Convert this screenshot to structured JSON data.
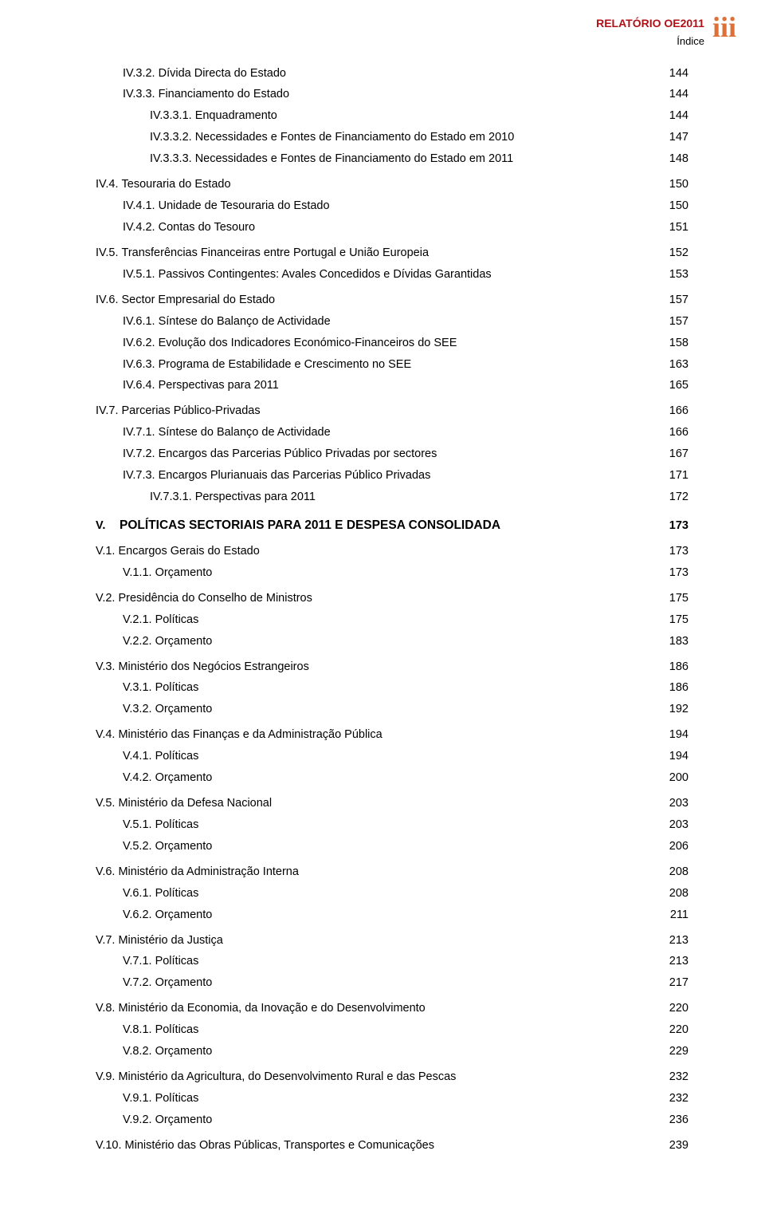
{
  "header": {
    "title": "RELATÓRIO OE2011",
    "subtitle": "Índice",
    "page_mark": "iii",
    "title_color": "#b01018",
    "mark_color": "#de6f36"
  },
  "toc": [
    {
      "level": 3,
      "num": "IV.3.2.",
      "title": "Dívida Directa do Estado",
      "page": "144"
    },
    {
      "level": 3,
      "num": "IV.3.3.",
      "title": "Financiamento do Estado",
      "page": "144"
    },
    {
      "level": 4,
      "num": "IV.3.3.1.",
      "title": "Enquadramento",
      "page": "144"
    },
    {
      "level": 4,
      "num": "IV.3.3.2.",
      "title": "Necessidades e Fontes de Financiamento do Estado em 2010",
      "page": "147"
    },
    {
      "level": 4,
      "num": "IV.3.3.3.",
      "title": "Necessidades e Fontes de Financiamento do Estado em 2011",
      "page": "148"
    },
    {
      "level": 2,
      "num": "IV.4.",
      "title": "Tesouraria do Estado",
      "page": "150"
    },
    {
      "level": 3,
      "num": "IV.4.1.",
      "title": "Unidade de Tesouraria do Estado",
      "page": "150"
    },
    {
      "level": 3,
      "num": "IV.4.2.",
      "title": "Contas do Tesouro",
      "page": "151"
    },
    {
      "level": 2,
      "num": "IV.5.",
      "title": "Transferências Financeiras entre Portugal e União Europeia",
      "page": "152"
    },
    {
      "level": 3,
      "num": "IV.5.1.",
      "title": "Passivos Contingentes: Avales Concedidos e Dívidas Garantidas",
      "page": "153"
    },
    {
      "level": 2,
      "num": "IV.6.",
      "title": "Sector Empresarial do Estado",
      "page": "157"
    },
    {
      "level": 3,
      "num": "IV.6.1.",
      "title": "Síntese do Balanço de Actividade",
      "page": "157"
    },
    {
      "level": 3,
      "num": "IV.6.2.",
      "title": "Evolução dos Indicadores Económico-Financeiros do SEE",
      "page": "158"
    },
    {
      "level": 3,
      "num": "IV.6.3.",
      "title": "Programa de Estabilidade e Crescimento no SEE",
      "page": "163"
    },
    {
      "level": 3,
      "num": "IV.6.4.",
      "title": "Perspectivas para 2011",
      "page": "165"
    },
    {
      "level": 2,
      "num": "IV.7.",
      "title": "Parcerias Público-Privadas",
      "page": "166"
    },
    {
      "level": 3,
      "num": "IV.7.1.",
      "title": "Síntese do Balanço de Actividade",
      "page": "166"
    },
    {
      "level": 3,
      "num": "IV.7.2.",
      "title": "Encargos das Parcerias Público Privadas por sectores",
      "page": "167"
    },
    {
      "level": 3,
      "num": "IV.7.3.",
      "title": "Encargos Plurianuais das Parcerias Público Privadas",
      "page": "171"
    },
    {
      "level": 4,
      "num": "IV.7.3.1.",
      "title": "Perspectivas para 2011",
      "page": "172"
    },
    {
      "level": 1,
      "num": "V.",
      "title": "POLÍTICAS SECTORIAIS PARA 2011 E DESPESA CONSOLIDADA",
      "page": "173",
      "chapter": true
    },
    {
      "level": 2,
      "num": "V.1.",
      "title": "Encargos Gerais do Estado",
      "page": "173"
    },
    {
      "level": 3,
      "num": "V.1.1.",
      "title": "Orçamento",
      "page": "173"
    },
    {
      "level": 2,
      "num": "V.2.",
      "title": "Presidência do Conselho de Ministros",
      "page": "175"
    },
    {
      "level": 3,
      "num": "V.2.1.",
      "title": "Políticas",
      "page": "175"
    },
    {
      "level": 3,
      "num": "V.2.2.",
      "title": "Orçamento",
      "page": "183"
    },
    {
      "level": 2,
      "num": "V.3.",
      "title": "Ministério dos Negócios Estrangeiros",
      "page": "186"
    },
    {
      "level": 3,
      "num": "V.3.1.",
      "title": "Políticas",
      "page": "186"
    },
    {
      "level": 3,
      "num": "V.3.2.",
      "title": "Orçamento",
      "page": "192"
    },
    {
      "level": 2,
      "num": "V.4.",
      "title": "Ministério das Finanças e da Administração Pública",
      "page": "194"
    },
    {
      "level": 3,
      "num": "V.4.1.",
      "title": "Políticas",
      "page": "194"
    },
    {
      "level": 3,
      "num": "V.4.2.",
      "title": "Orçamento",
      "page": "200"
    },
    {
      "level": 2,
      "num": "V.5.",
      "title": "Ministério da Defesa Nacional",
      "page": "203"
    },
    {
      "level": 3,
      "num": "V.5.1.",
      "title": "Políticas",
      "page": "203"
    },
    {
      "level": 3,
      "num": "V.5.2.",
      "title": "Orçamento",
      "page": "206"
    },
    {
      "level": 2,
      "num": "V.6.",
      "title": "Ministério da Administração Interna",
      "page": "208"
    },
    {
      "level": 3,
      "num": "V.6.1.",
      "title": "Políticas",
      "page": "208"
    },
    {
      "level": 3,
      "num": "V.6.2.",
      "title": "Orçamento",
      "page": "211"
    },
    {
      "level": 2,
      "num": "V.7.",
      "title": "Ministério da Justiça",
      "page": "213"
    },
    {
      "level": 3,
      "num": "V.7.1.",
      "title": "Políticas",
      "page": "213"
    },
    {
      "level": 3,
      "num": "V.7.2.",
      "title": "Orçamento",
      "page": "217"
    },
    {
      "level": 2,
      "num": "V.8.",
      "title": "Ministério da Economia, da Inovação e do Desenvolvimento",
      "page": "220"
    },
    {
      "level": 3,
      "num": "V.8.1.",
      "title": "Políticas",
      "page": "220"
    },
    {
      "level": 3,
      "num": "V.8.2.",
      "title": "Orçamento",
      "page": "229"
    },
    {
      "level": 2,
      "num": "V.9.",
      "title": "Ministério da Agricultura, do Desenvolvimento Rural e das Pescas",
      "page": "232"
    },
    {
      "level": 3,
      "num": "V.9.1.",
      "title": "Políticas",
      "page": "232"
    },
    {
      "level": 3,
      "num": "V.9.2.",
      "title": "Orçamento",
      "page": "236"
    },
    {
      "level": 2,
      "num": "V.10.",
      "title": "Ministério das Obras Públicas, Transportes e Comunicações",
      "page": "239"
    }
  ]
}
